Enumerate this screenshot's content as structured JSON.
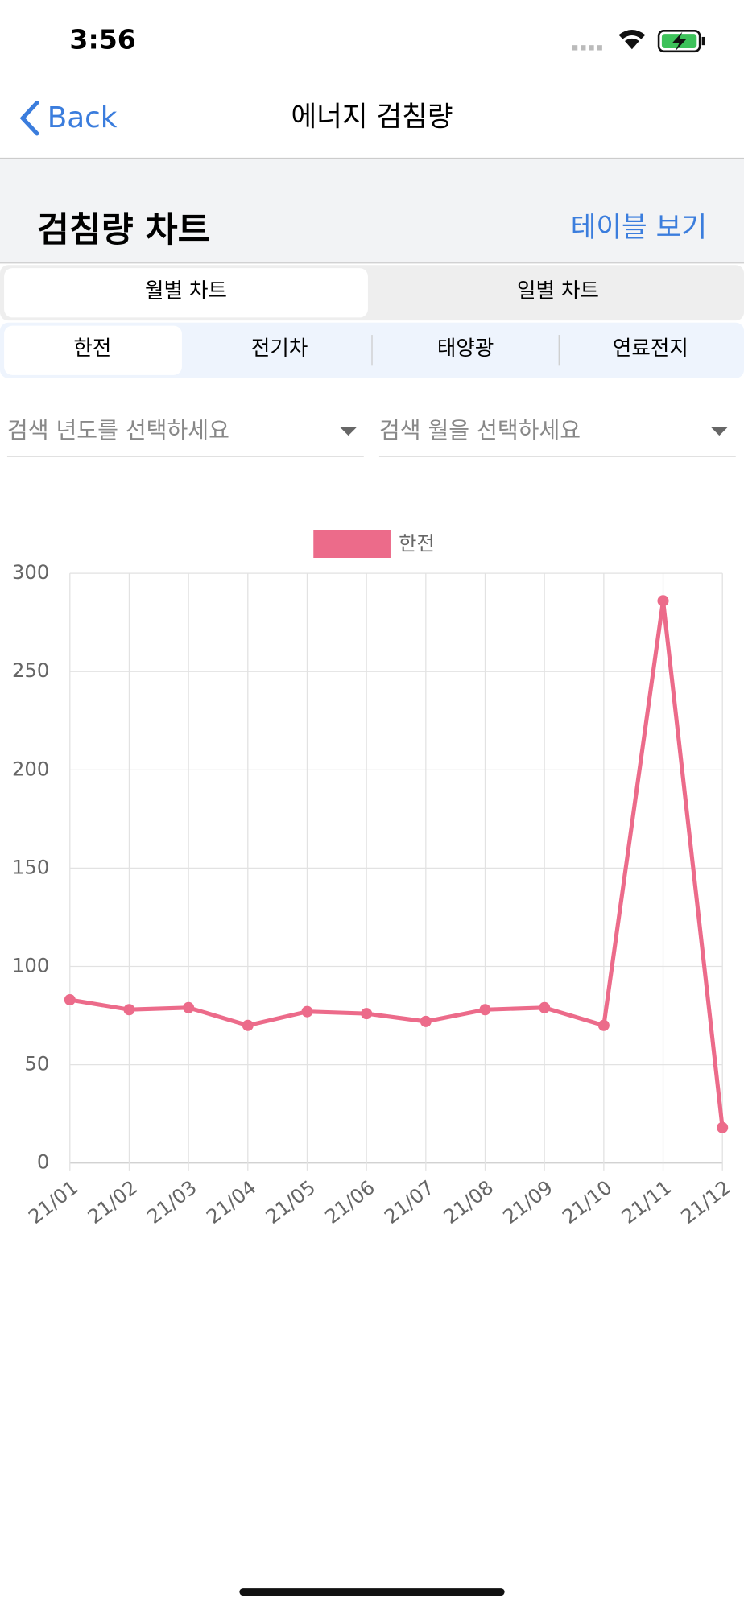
{
  "status_bar": {
    "time": "3:56"
  },
  "nav": {
    "back": "Back",
    "title": "에너지 검침량"
  },
  "section": {
    "title": "검침량 차트",
    "link": "테이블 보기"
  },
  "tabs": [
    "월별 차트",
    "일별 차트"
  ],
  "sources": [
    "한전",
    "전기차",
    "태양광",
    "연료전지"
  ],
  "filters": [
    "검색 년도를 선택하세요",
    "검색 월을 선택하세요"
  ],
  "chart_data": {
    "type": "line",
    "categories": [
      "21/01",
      "21/02",
      "21/03",
      "21/04",
      "21/05",
      "21/06",
      "21/07",
      "21/08",
      "21/09",
      "21/10",
      "21/11",
      "21/12"
    ],
    "series": [
      {
        "name": "한전",
        "color": "#ec6b8a",
        "values": [
          83,
          78,
          79,
          70,
          77,
          76,
          72,
          78,
          79,
          70,
          286,
          18
        ]
      }
    ],
    "ylim": [
      0,
      300
    ],
    "yticks": [
      0,
      50,
      100,
      150,
      200,
      250,
      300
    ],
    "grid": true
  }
}
